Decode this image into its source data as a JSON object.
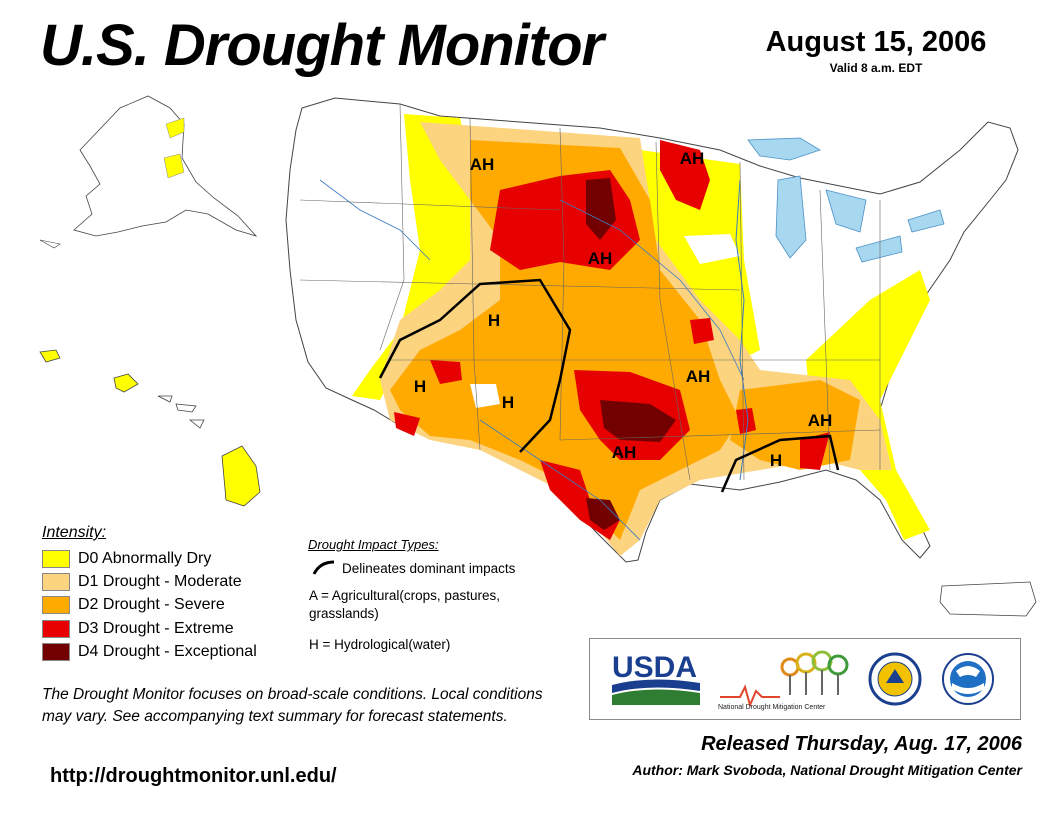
{
  "header": {
    "title": "U.S. Drought Monitor",
    "date": "August 15, 2006",
    "valid": "Valid 8 a.m. EDT"
  },
  "map": {
    "labels": [
      "AH",
      "AH",
      "AH",
      "H",
      "H",
      "H",
      "AH",
      "AH",
      "H",
      "AH"
    ]
  },
  "legend": {
    "title": "Intensity:",
    "items": [
      {
        "label": "D0 Abnormally Dry",
        "color": "#ffff00"
      },
      {
        "label": "D1 Drought - Moderate",
        "color": "#fcd37f"
      },
      {
        "label": "D2 Drought - Severe",
        "color": "#ffaa00"
      },
      {
        "label": "D3 Drought - Extreme",
        "color": "#e60000"
      },
      {
        "label": "D4 Drought - Exceptional",
        "color": "#730000"
      }
    ]
  },
  "impacts": {
    "title": "Drought Impact Types:",
    "line_text": "Delineates dominant impacts",
    "a_text": "A = Agricultural(crops, pastures, grasslands)",
    "h_text": "H = Hydrological(water)"
  },
  "note": "The Drought Monitor focuses on broad-scale conditions. Local conditions may vary. See accompanying text summary for forecast statements.",
  "url": "http://droughtmonitor.unl.edu/",
  "logos": {
    "usda": "USDA",
    "ndmc": "National Drought Mitigation Center"
  },
  "footer": {
    "released": "Released Thursday, Aug. 17, 2006",
    "author": "Author: Mark Svoboda, National Drought Mitigation Center"
  }
}
